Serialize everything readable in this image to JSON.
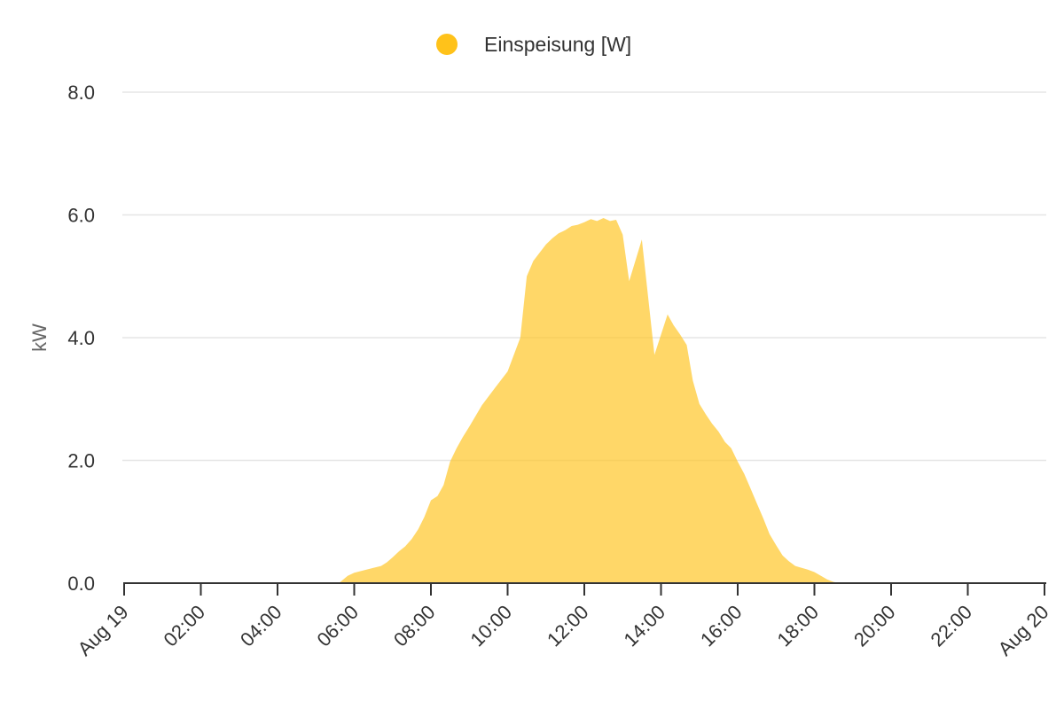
{
  "chart_data": {
    "type": "area",
    "title": "",
    "xlabel": "",
    "ylabel": "kW",
    "ylim": [
      0,
      8
    ],
    "xlim_hours": [
      0,
      24
    ],
    "grid": true,
    "legend_position": "top-center",
    "x_tick_labels": [
      "Aug 19",
      "02:00",
      "04:00",
      "06:00",
      "08:00",
      "10:00",
      "12:00",
      "14:00",
      "16:00",
      "18:00",
      "20:00",
      "22:00",
      "Aug 20"
    ],
    "y_tick_labels": [
      "0.0",
      "2.0",
      "4.0",
      "6.0",
      "8.0"
    ],
    "series": [
      {
        "name": "Einspeisung [W]",
        "color": "#FFC21A",
        "x_hours": [
          0,
          5.6,
          5.83,
          6.0,
          6.25,
          6.5,
          6.7,
          6.85,
          7.0,
          7.17,
          7.33,
          7.5,
          7.67,
          7.83,
          8.0,
          8.17,
          8.33,
          8.5,
          8.67,
          8.83,
          9.0,
          9.33,
          9.67,
          10.0,
          10.33,
          10.5,
          10.67,
          10.83,
          11.0,
          11.17,
          11.33,
          11.5,
          11.67,
          11.83,
          12.0,
          12.17,
          12.33,
          12.5,
          12.67,
          12.83,
          13.0,
          13.17,
          13.5,
          13.83,
          14.17,
          14.33,
          14.5,
          14.67,
          14.83,
          15.0,
          15.17,
          15.33,
          15.5,
          15.67,
          15.83,
          16.0,
          16.17,
          16.33,
          16.5,
          16.67,
          16.83,
          17.0,
          17.17,
          17.33,
          17.5,
          17.67,
          17.83,
          18.0,
          18.17,
          18.33,
          18.5,
          18.67,
          18.83,
          19.0,
          24.0
        ],
        "values_kw": [
          0,
          0,
          0.12,
          0.17,
          0.21,
          0.25,
          0.28,
          0.34,
          0.42,
          0.52,
          0.6,
          0.72,
          0.88,
          1.08,
          1.35,
          1.42,
          1.6,
          1.98,
          2.2,
          2.38,
          2.55,
          2.9,
          3.18,
          3.45,
          4.0,
          5.0,
          5.25,
          5.38,
          5.52,
          5.62,
          5.7,
          5.75,
          5.82,
          5.84,
          5.88,
          5.93,
          5.9,
          5.95,
          5.9,
          5.92,
          5.68,
          4.92,
          5.6,
          3.72,
          4.38,
          4.2,
          4.05,
          3.88,
          3.3,
          2.92,
          2.75,
          2.6,
          2.47,
          2.3,
          2.2,
          1.98,
          1.78,
          1.55,
          1.3,
          1.05,
          0.8,
          0.62,
          0.45,
          0.36,
          0.28,
          0.25,
          0.22,
          0.18,
          0.12,
          0.06,
          0.02,
          0,
          0,
          0,
          0
        ]
      }
    ]
  }
}
